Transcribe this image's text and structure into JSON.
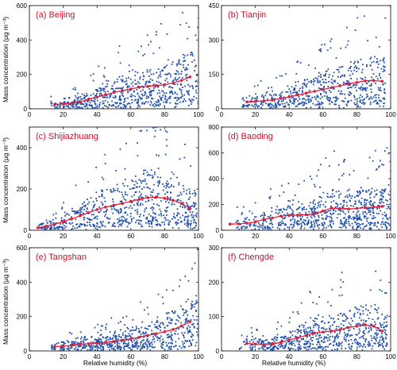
{
  "figure": {
    "ylabel": "Mass concentration (μg m⁻³)",
    "xlabel": "Relative humidity (%)"
  },
  "colors": {
    "scatter": "#1f4fa8",
    "curve": "#e0203a",
    "label": "#d0102a",
    "axis": "#000000"
  },
  "chart_data": [
    {
      "type": "scatter",
      "title": "(a) Beijing",
      "xlim": [
        0,
        100
      ],
      "ylim": [
        0,
        600
      ],
      "xticks": [
        "0",
        "20",
        "40",
        "60",
        "80",
        "100"
      ],
      "yticks": [
        "0",
        "200",
        "400",
        "600"
      ],
      "scatter_summary": {
        "n_points": 650,
        "x_range": [
          12,
          100
        ],
        "note": "dense cloud of points widening with RH"
      },
      "series": [
        {
          "x": [
            15,
            20,
            25,
            30,
            35,
            40,
            45,
            50,
            55,
            60,
            65,
            70,
            75,
            80,
            85,
            90,
            95
          ],
          "y": [
            25,
            28,
            32,
            40,
            55,
            68,
            82,
            95,
            105,
            115,
            125,
            130,
            135,
            140,
            150,
            165,
            185
          ]
        }
      ]
    },
    {
      "type": "scatter",
      "title": "(b) Tianjin",
      "xlim": [
        0,
        100
      ],
      "ylim": [
        0,
        450
      ],
      "xticks": [
        "0",
        "20",
        "40",
        "60",
        "80",
        "100"
      ],
      "yticks": [
        "0",
        "150",
        "300",
        "450"
      ],
      "scatter_summary": {
        "n_points": 600,
        "x_range": [
          12,
          97
        ]
      },
      "series": [
        {
          "x": [
            15,
            20,
            25,
            30,
            35,
            40,
            45,
            50,
            55,
            60,
            65,
            70,
            75,
            80,
            85,
            90,
            95
          ],
          "y": [
            30,
            32,
            35,
            38,
            45,
            52,
            60,
            68,
            76,
            84,
            92,
            100,
            108,
            115,
            122,
            123,
            120
          ]
        }
      ]
    },
    {
      "type": "scatter",
      "title": "(c) Shijiazhuang",
      "xlim": [
        0,
        100
      ],
      "ylim": [
        0,
        500
      ],
      "xticks": [
        "0",
        "20",
        "40",
        "60",
        "80",
        "100"
      ],
      "yticks": [
        "0",
        "200",
        "400"
      ],
      "scatter_summary": {
        "n_points": 700,
        "x_range": [
          5,
          99
        ]
      },
      "series": [
        {
          "x": [
            5,
            10,
            15,
            20,
            25,
            30,
            35,
            40,
            45,
            50,
            55,
            60,
            65,
            70,
            75,
            80,
            85,
            90,
            95
          ],
          "y": [
            12,
            20,
            30,
            42,
            55,
            70,
            85,
            100,
            112,
            122,
            130,
            140,
            150,
            158,
            160,
            155,
            145,
            130,
            105
          ]
        }
      ]
    },
    {
      "type": "scatter",
      "title": "(d) Baoding",
      "xlim": [
        0,
        100
      ],
      "ylim": [
        0,
        800
      ],
      "xticks": [
        "0",
        "20",
        "40",
        "60",
        "80",
        "100"
      ],
      "yticks": [
        "0",
        "200",
        "400",
        "600",
        "800"
      ],
      "scatter_summary": {
        "n_points": 700,
        "x_range": [
          8,
          100
        ]
      },
      "series": [
        {
          "x": [
            5,
            10,
            15,
            20,
            25,
            30,
            35,
            40,
            45,
            50,
            55,
            60,
            65,
            70,
            75,
            80,
            85,
            90,
            95
          ],
          "y": [
            48,
            50,
            55,
            65,
            85,
            95,
            110,
            115,
            118,
            120,
            128,
            150,
            172,
            168,
            165,
            170,
            175,
            180,
            185
          ]
        }
      ]
    },
    {
      "type": "scatter",
      "title": "(e) Tangshan",
      "xlim": [
        0,
        100
      ],
      "ylim": [
        0,
        600
      ],
      "xticks": [
        "0",
        "20",
        "40",
        "60",
        "80",
        "100"
      ],
      "yticks": [
        "0",
        "200",
        "400",
        "600"
      ],
      "scatter_summary": {
        "n_points": 650,
        "x_range": [
          12,
          100
        ]
      },
      "series": [
        {
          "x": [
            15,
            20,
            25,
            30,
            35,
            40,
            45,
            50,
            55,
            60,
            65,
            70,
            75,
            80,
            85,
            90,
            95
          ],
          "y": [
            25,
            28,
            32,
            38,
            42,
            45,
            50,
            55,
            62,
            70,
            80,
            90,
            100,
            112,
            125,
            145,
            170
          ]
        }
      ]
    },
    {
      "type": "scatter",
      "title": "(f) Chengde",
      "xlim": [
        0,
        100
      ],
      "ylim": [
        0,
        300
      ],
      "xticks": [
        "0",
        "20",
        "40",
        "60",
        "80",
        "100"
      ],
      "yticks": [
        "0",
        "100",
        "200",
        "300"
      ],
      "scatter_summary": {
        "n_points": 650,
        "x_range": [
          10,
          98
        ]
      },
      "series": [
        {
          "x": [
            15,
            20,
            25,
            30,
            35,
            40,
            45,
            50,
            55,
            60,
            65,
            70,
            75,
            80,
            85,
            90,
            95
          ],
          "y": [
            22,
            20,
            18,
            20,
            25,
            32,
            38,
            45,
            52,
            55,
            58,
            62,
            68,
            72,
            76,
            72,
            58
          ]
        }
      ]
    }
  ]
}
